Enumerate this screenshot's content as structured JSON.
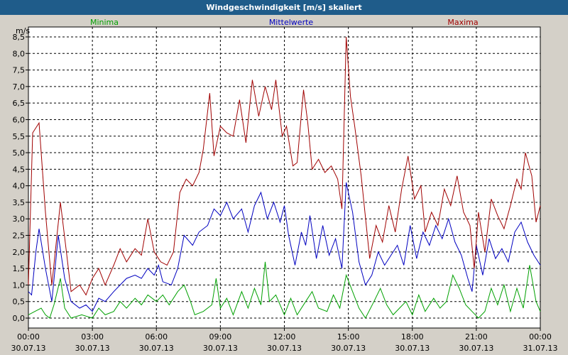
{
  "window": {
    "title": "Windgeschwindigkeit [m/s] skaliert"
  },
  "colors": {
    "background": "#d4d0c8",
    "plot": "#ffffff",
    "title_bar": "#1f5c8a",
    "min": "#00a000",
    "mean": "#0000c0",
    "max": "#a00000"
  },
  "chart_data": {
    "type": "line",
    "title": "Windgeschwindigkeit [m/s] skaliert",
    "ylabel": "m/s",
    "xlabel": "",
    "ylim": [
      -0.3,
      8.8
    ],
    "xlim": [
      0,
      24
    ],
    "grid": true,
    "legend_position": "top",
    "yticks": [
      "0,0",
      "0,5",
      "1,0",
      "1,5",
      "2,0",
      "2,5",
      "3,0",
      "3,5",
      "4,0",
      "4,5",
      "5,0",
      "5,5",
      "6,0",
      "6,5",
      "7,0",
      "7,5",
      "8,0",
      "8,5"
    ],
    "xticks": [
      {
        "time": "00:00",
        "date": "30.07.13"
      },
      {
        "time": "03:00",
        "date": "30.07.13"
      },
      {
        "time": "06:00",
        "date": "30.07.13"
      },
      {
        "time": "09:00",
        "date": "30.07.13"
      },
      {
        "time": "12:00",
        "date": "30.07.13"
      },
      {
        "time": "15:00",
        "date": "30.07.13"
      },
      {
        "time": "18:00",
        "date": "30.07.13"
      },
      {
        "time": "21:00",
        "date": "30.07.13"
      },
      {
        "time": "00:00",
        "date": "31.07.13"
      }
    ],
    "series": [
      {
        "name": "Minima",
        "points": [
          [
            0,
            0.1
          ],
          [
            0.3,
            0.2
          ],
          [
            0.6,
            0.3
          ],
          [
            0.8,
            0.1
          ],
          [
            1.0,
            0.0
          ],
          [
            1.2,
            0.4
          ],
          [
            1.5,
            1.2
          ],
          [
            1.7,
            0.3
          ],
          [
            2.0,
            0.0
          ],
          [
            2.5,
            0.1
          ],
          [
            3.0,
            0.0
          ],
          [
            3.3,
            0.3
          ],
          [
            3.6,
            0.1
          ],
          [
            4.0,
            0.2
          ],
          [
            4.3,
            0.5
          ],
          [
            4.6,
            0.3
          ],
          [
            5.0,
            0.6
          ],
          [
            5.3,
            0.4
          ],
          [
            5.6,
            0.7
          ],
          [
            6.0,
            0.5
          ],
          [
            6.3,
            0.7
          ],
          [
            6.6,
            0.4
          ],
          [
            7.0,
            0.8
          ],
          [
            7.3,
            1.0
          ],
          [
            7.6,
            0.5
          ],
          [
            7.8,
            0.1
          ],
          [
            8.2,
            0.2
          ],
          [
            8.6,
            0.4
          ],
          [
            8.8,
            1.2
          ],
          [
            9.0,
            0.3
          ],
          [
            9.3,
            0.6
          ],
          [
            9.6,
            0.1
          ],
          [
            10.0,
            0.8
          ],
          [
            10.3,
            0.3
          ],
          [
            10.6,
            0.9
          ],
          [
            10.9,
            0.4
          ],
          [
            11.1,
            1.7
          ],
          [
            11.3,
            0.5
          ],
          [
            11.6,
            0.7
          ],
          [
            12.0,
            0.1
          ],
          [
            12.3,
            0.6
          ],
          [
            12.6,
            0.1
          ],
          [
            13.0,
            0.5
          ],
          [
            13.3,
            0.8
          ],
          [
            13.6,
            0.3
          ],
          [
            14.0,
            0.2
          ],
          [
            14.3,
            0.7
          ],
          [
            14.6,
            0.3
          ],
          [
            14.9,
            1.3
          ],
          [
            15.2,
            0.8
          ],
          [
            15.5,
            0.3
          ],
          [
            15.8,
            0.0
          ],
          [
            16.2,
            0.5
          ],
          [
            16.5,
            0.9
          ],
          [
            16.8,
            0.4
          ],
          [
            17.1,
            0.1
          ],
          [
            17.4,
            0.3
          ],
          [
            17.7,
            0.5
          ],
          [
            18.0,
            0.1
          ],
          [
            18.3,
            0.7
          ],
          [
            18.6,
            0.2
          ],
          [
            19.0,
            0.6
          ],
          [
            19.3,
            0.3
          ],
          [
            19.6,
            0.5
          ],
          [
            19.9,
            1.3
          ],
          [
            20.2,
            0.9
          ],
          [
            20.5,
            0.4
          ],
          [
            20.8,
            0.2
          ],
          [
            21.1,
            0.0
          ],
          [
            21.4,
            0.2
          ],
          [
            21.7,
            0.9
          ],
          [
            22.0,
            0.4
          ],
          [
            22.3,
            1.0
          ],
          [
            22.6,
            0.2
          ],
          [
            22.9,
            0.9
          ],
          [
            23.2,
            0.3
          ],
          [
            23.5,
            1.6
          ],
          [
            23.8,
            0.5
          ],
          [
            24.0,
            0.2
          ]
        ]
      },
      {
        "name": "Mittelwerte",
        "points": [
          [
            0,
            0.8
          ],
          [
            0.15,
            0.7
          ],
          [
            0.35,
            2.0
          ],
          [
            0.5,
            2.7
          ],
          [
            0.8,
            1.5
          ],
          [
            1.1,
            0.5
          ],
          [
            1.4,
            2.5
          ],
          [
            1.7,
            1.2
          ],
          [
            2.0,
            0.5
          ],
          [
            2.4,
            0.3
          ],
          [
            2.7,
            0.4
          ],
          [
            3.0,
            0.2
          ],
          [
            3.3,
            0.6
          ],
          [
            3.6,
            0.5
          ],
          [
            4.0,
            0.8
          ],
          [
            4.3,
            1.0
          ],
          [
            4.6,
            1.2
          ],
          [
            5.0,
            1.3
          ],
          [
            5.3,
            1.2
          ],
          [
            5.6,
            1.5
          ],
          [
            5.9,
            1.3
          ],
          [
            6.1,
            1.6
          ],
          [
            6.3,
            1.1
          ],
          [
            6.7,
            1.0
          ],
          [
            7.0,
            1.5
          ],
          [
            7.3,
            2.5
          ],
          [
            7.7,
            2.2
          ],
          [
            8.0,
            2.6
          ],
          [
            8.4,
            2.8
          ],
          [
            8.7,
            3.3
          ],
          [
            9.0,
            3.1
          ],
          [
            9.3,
            3.5
          ],
          [
            9.6,
            3.0
          ],
          [
            10.0,
            3.3
          ],
          [
            10.3,
            2.6
          ],
          [
            10.6,
            3.4
          ],
          [
            10.9,
            3.8
          ],
          [
            11.2,
            3.0
          ],
          [
            11.5,
            3.5
          ],
          [
            11.8,
            2.9
          ],
          [
            12.0,
            3.4
          ],
          [
            12.2,
            2.5
          ],
          [
            12.5,
            1.6
          ],
          [
            12.8,
            2.6
          ],
          [
            13.0,
            2.2
          ],
          [
            13.2,
            3.1
          ],
          [
            13.5,
            1.8
          ],
          [
            13.8,
            2.8
          ],
          [
            14.1,
            1.9
          ],
          [
            14.4,
            2.4
          ],
          [
            14.7,
            1.5
          ],
          [
            14.9,
            4.1
          ],
          [
            15.2,
            3.2
          ],
          [
            15.5,
            1.7
          ],
          [
            15.8,
            1.0
          ],
          [
            16.1,
            1.3
          ],
          [
            16.4,
            2.0
          ],
          [
            16.7,
            1.6
          ],
          [
            17.0,
            1.9
          ],
          [
            17.3,
            2.2
          ],
          [
            17.6,
            1.6
          ],
          [
            17.9,
            2.8
          ],
          [
            18.2,
            1.8
          ],
          [
            18.5,
            2.6
          ],
          [
            18.8,
            2.2
          ],
          [
            19.1,
            2.8
          ],
          [
            19.4,
            2.4
          ],
          [
            19.7,
            3.0
          ],
          [
            20.0,
            2.3
          ],
          [
            20.3,
            1.9
          ],
          [
            20.6,
            1.2
          ],
          [
            20.8,
            0.8
          ],
          [
            21.0,
            2.2
          ],
          [
            21.3,
            1.3
          ],
          [
            21.6,
            2.4
          ],
          [
            21.9,
            1.8
          ],
          [
            22.2,
            2.1
          ],
          [
            22.5,
            1.7
          ],
          [
            22.8,
            2.6
          ],
          [
            23.1,
            2.9
          ],
          [
            23.4,
            2.3
          ],
          [
            23.7,
            1.9
          ],
          [
            24.0,
            1.6
          ]
        ]
      },
      {
        "name": "Maxima",
        "points": [
          [
            0,
            1.0
          ],
          [
            0.2,
            5.6
          ],
          [
            0.5,
            5.9
          ],
          [
            0.8,
            3.2
          ],
          [
            1.1,
            1.0
          ],
          [
            1.5,
            3.5
          ],
          [
            1.8,
            1.9
          ],
          [
            2.0,
            0.8
          ],
          [
            2.4,
            1.0
          ],
          [
            2.7,
            0.7
          ],
          [
            3.0,
            1.2
          ],
          [
            3.3,
            1.5
          ],
          [
            3.6,
            1.0
          ],
          [
            4.0,
            1.6
          ],
          [
            4.3,
            2.1
          ],
          [
            4.6,
            1.7
          ],
          [
            5.0,
            2.1
          ],
          [
            5.3,
            1.9
          ],
          [
            5.6,
            3.0
          ],
          [
            5.9,
            2.0
          ],
          [
            6.2,
            1.7
          ],
          [
            6.5,
            1.6
          ],
          [
            6.8,
            2.0
          ],
          [
            7.1,
            3.8
          ],
          [
            7.4,
            4.2
          ],
          [
            7.7,
            4.0
          ],
          [
            8.0,
            4.4
          ],
          [
            8.2,
            5.1
          ],
          [
            8.5,
            6.8
          ],
          [
            8.7,
            4.9
          ],
          [
            9.0,
            5.8
          ],
          [
            9.3,
            5.6
          ],
          [
            9.6,
            5.5
          ],
          [
            9.9,
            6.6
          ],
          [
            10.2,
            5.3
          ],
          [
            10.5,
            7.2
          ],
          [
            10.8,
            6.1
          ],
          [
            11.1,
            7.0
          ],
          [
            11.4,
            6.3
          ],
          [
            11.6,
            7.2
          ],
          [
            11.9,
            5.5
          ],
          [
            12.1,
            5.8
          ],
          [
            12.4,
            4.6
          ],
          [
            12.6,
            4.7
          ],
          [
            12.9,
            6.9
          ],
          [
            13.1,
            5.9
          ],
          [
            13.3,
            4.5
          ],
          [
            13.6,
            4.8
          ],
          [
            13.9,
            4.4
          ],
          [
            14.2,
            4.6
          ],
          [
            14.5,
            4.2
          ],
          [
            14.7,
            3.3
          ],
          [
            14.9,
            8.5
          ],
          [
            15.1,
            6.7
          ],
          [
            15.3,
            5.8
          ],
          [
            15.6,
            4.3
          ],
          [
            16.0,
            1.8
          ],
          [
            16.3,
            2.8
          ],
          [
            16.6,
            2.3
          ],
          [
            16.9,
            3.4
          ],
          [
            17.2,
            2.6
          ],
          [
            17.5,
            3.9
          ],
          [
            17.8,
            4.9
          ],
          [
            18.1,
            3.6
          ],
          [
            18.4,
            4.0
          ],
          [
            18.6,
            2.6
          ],
          [
            18.9,
            3.2
          ],
          [
            19.2,
            2.8
          ],
          [
            19.5,
            3.9
          ],
          [
            19.8,
            3.4
          ],
          [
            20.1,
            4.3
          ],
          [
            20.4,
            3.2
          ],
          [
            20.7,
            2.8
          ],
          [
            20.9,
            1.5
          ],
          [
            21.1,
            3.2
          ],
          [
            21.4,
            2.0
          ],
          [
            21.7,
            3.6
          ],
          [
            22.0,
            3.1
          ],
          [
            22.3,
            2.7
          ],
          [
            22.6,
            3.4
          ],
          [
            22.9,
            4.2
          ],
          [
            23.1,
            3.9
          ],
          [
            23.3,
            5.0
          ],
          [
            23.6,
            4.3
          ],
          [
            23.8,
            2.9
          ],
          [
            24.0,
            3.4
          ]
        ]
      }
    ]
  }
}
